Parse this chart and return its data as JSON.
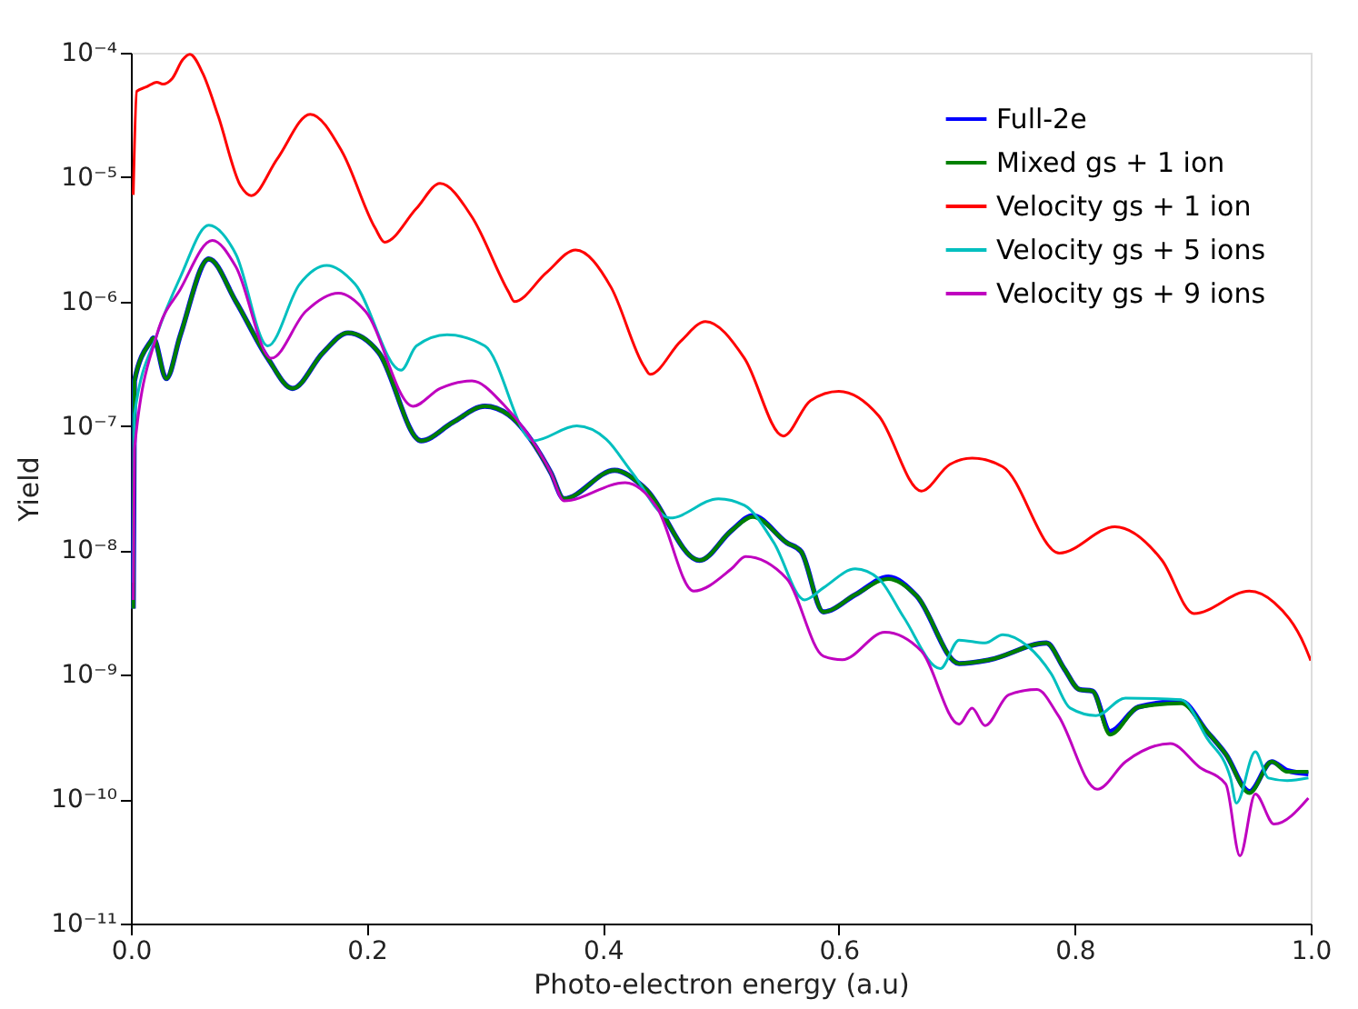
{
  "chart_data": {
    "type": "line",
    "xlabel": "Photo-electron energy (a.u)",
    "ylabel": "Yield",
    "log": "y",
    "legend": "top right",
    "grid": false,
    "line_style": "solid",
    "marker": "none",
    "xlim": [
      0,
      1
    ],
    "xticks": [
      {
        "value": 0,
        "label": "0.0"
      },
      0.2,
      0.4,
      0.6,
      0.8,
      {
        "value": 1,
        "label": "1.0"
      }
    ],
    "ylim": [
      1e-11,
      0.0001
    ],
    "yticks": [
      {
        "value": 1e-11,
        "label": "10⁻¹¹"
      },
      {
        "value": 1e-10,
        "label": "10⁻¹⁰"
      },
      {
        "value": 1e-09,
        "label": "10⁻⁹"
      },
      {
        "value": 1e-08,
        "label": "10⁻⁸"
      },
      {
        "value": 1e-07,
        "label": "10⁻⁷"
      },
      {
        "value": 1e-06,
        "label": "10⁻⁶"
      },
      {
        "value": 1e-05,
        "label": "10⁻⁵"
      },
      {
        "value": 0.0001,
        "label": "10⁻⁴"
      }
    ],
    "series": [
      {
        "name": "Full-2e",
        "color": "#0000ff",
        "x": [
          0.002,
          0.003,
          0.017,
          0.019,
          0.03,
          0.042,
          0.066,
          0.089,
          0.116,
          0.137,
          0.163,
          0.184,
          0.21,
          0.246,
          0.273,
          0.3,
          0.32,
          0.356,
          0.367,
          0.41,
          0.435,
          0.482,
          0.509,
          0.527,
          0.556,
          0.568,
          0.587,
          0.614,
          0.642,
          0.666,
          0.702,
          0.728,
          0.776,
          0.791,
          0.804,
          0.815,
          0.83,
          0.854,
          0.89,
          0.912,
          0.928,
          0.948,
          0.967,
          0.98,
          0.998
        ],
        "values": [
          3.4e-09,
          2.3e-07,
          4.8e-07,
          5.1e-07,
          2.4e-07,
          5.4e-07,
          2.2e-06,
          1e-06,
          3.5e-07,
          2e-07,
          3.9e-07,
          5.6e-07,
          3.9e-07,
          7.6e-08,
          1.07e-07,
          1.44e-07,
          1.23e-07,
          4.2e-08,
          2.6e-08,
          4.4e-08,
          3.2e-08,
          8.3e-09,
          1.44e-08,
          1.9e-08,
          1.15e-08,
          9.8e-09,
          3.2e-09,
          4.4e-09,
          6.1e-09,
          4.3e-09,
          1.23e-09,
          1.32e-09,
          1.8e-09,
          1.12e-09,
          7.6e-10,
          7.4e-10,
          3.5e-10,
          5.5e-10,
          6.1e-10,
          3.5e-10,
          2.3e-10,
          1.15e-10,
          2e-10,
          1.7e-10,
          1.6e-10
        ]
      },
      {
        "name": "Mixed gs + 1 ion",
        "color": "#008000",
        "x": [
          0.002,
          0.003,
          0.017,
          0.019,
          0.03,
          0.042,
          0.066,
          0.089,
          0.116,
          0.137,
          0.163,
          0.184,
          0.21,
          0.246,
          0.273,
          0.3,
          0.32,
          0.356,
          0.367,
          0.41,
          0.435,
          0.482,
          0.509,
          0.527,
          0.556,
          0.568,
          0.587,
          0.614,
          0.642,
          0.666,
          0.702,
          0.728,
          0.776,
          0.791,
          0.804,
          0.815,
          0.83,
          0.854,
          0.89,
          0.912,
          0.928,
          0.948,
          0.967,
          0.98,
          0.998
        ],
        "values": [
          3.4e-09,
          2.3e-07,
          4.8e-07,
          5.1e-07,
          2.4e-07,
          5.4e-07,
          2.2e-06,
          1e-06,
          3.5e-07,
          2e-07,
          3.9e-07,
          5.6e-07,
          3.9e-07,
          7.6e-08,
          1.07e-07,
          1.44e-07,
          1.23e-07,
          4.2e-08,
          2.6e-08,
          4.4e-08,
          3.2e-08,
          8.3e-09,
          1.44e-08,
          1.86e-08,
          1.15e-08,
          9.8e-09,
          3.2e-09,
          4.4e-09,
          5.9e-09,
          4.3e-09,
          1.23e-09,
          1.32e-09,
          1.8e-09,
          1.12e-09,
          7.6e-10,
          7.4e-10,
          3.3e-10,
          5.5e-10,
          5.9e-10,
          3.5e-10,
          2.3e-10,
          1.12e-10,
          2e-10,
          1.66e-10,
          1.66e-10
        ]
      },
      {
        "name": "Velocity gs + 1 ion",
        "color": "#ff0000",
        "x": [
          0.002,
          0.005,
          0.013,
          0.022,
          0.027,
          0.035,
          0.044,
          0.05,
          0.061,
          0.074,
          0.093,
          0.102,
          0.124,
          0.152,
          0.179,
          0.207,
          0.215,
          0.242,
          0.262,
          0.289,
          0.32,
          0.325,
          0.352,
          0.377,
          0.407,
          0.435,
          0.44,
          0.466,
          0.487,
          0.52,
          0.553,
          0.576,
          0.6,
          0.634,
          0.67,
          0.694,
          0.713,
          0.739,
          0.787,
          0.834,
          0.874,
          0.901,
          0.948,
          0.969,
          0.995,
          1.0
        ],
        "values": [
          7.2e-06,
          4.9e-05,
          5.3e-05,
          5.8e-05,
          5.6e-05,
          6.2e-05,
          8.8e-05,
          9.7e-05,
          6.8e-05,
          3.1e-05,
          8.5e-06,
          7.1e-06,
          1.4e-05,
          3.2e-05,
          1.6e-05,
          3.9e-06,
          3e-06,
          5.6e-06,
          8.9e-06,
          4.8e-06,
          1.2e-06,
          1e-06,
          1.7e-06,
          2.6e-06,
          1.3e-06,
          3e-07,
          2.6e-07,
          4.8e-07,
          6.9e-07,
          3.5e-07,
          8.3e-08,
          1.6e-07,
          1.9e-07,
          1.2e-07,
          3e-08,
          4.9e-08,
          5.5e-08,
          4.7e-08,
          9.5e-09,
          1.55e-08,
          8.3e-09,
          3.1e-09,
          4.7e-09,
          3.8e-09,
          1.7e-09,
          1.3e-09
        ]
      },
      {
        "name": "Velocity gs + 5 ions",
        "color": "#00bfbf",
        "x": [
          0.002,
          0.003,
          0.022,
          0.042,
          0.066,
          0.089,
          0.116,
          0.143,
          0.166,
          0.19,
          0.229,
          0.242,
          0.268,
          0.3,
          0.341,
          0.378,
          0.403,
          0.425,
          0.457,
          0.498,
          0.52,
          0.545,
          0.571,
          0.587,
          0.614,
          0.634,
          0.655,
          0.686,
          0.702,
          0.724,
          0.739,
          0.76,
          0.78,
          0.796,
          0.818,
          0.843,
          0.89,
          0.912,
          0.932,
          0.937,
          0.953,
          0.964,
          0.98,
          0.998
        ],
        "values": [
          5.5e-09,
          1.23e-07,
          5.4e-07,
          1.58e-06,
          4.1e-06,
          2.4e-06,
          4.4e-07,
          1.38e-06,
          1.95e-06,
          1.38e-06,
          2.8e-07,
          4.4e-07,
          5.4e-07,
          4.4e-07,
          7.6e-08,
          1e-07,
          7.8e-08,
          4.2e-08,
          1.82e-08,
          2.6e-08,
          2.3e-08,
          1.15e-08,
          4e-09,
          5e-09,
          7.1e-09,
          5.9e-09,
          2.9e-09,
          1.12e-09,
          1.9e-09,
          1.8e-09,
          2.1e-09,
          1.7e-09,
          1.02e-09,
          5.4e-10,
          4.7e-10,
          6.5e-10,
          6.3e-10,
          3.1e-10,
          1.48e-10,
          9.3e-11,
          2.4e-10,
          1.48e-10,
          1.41e-10,
          1.48e-10
        ]
      },
      {
        "name": "Velocity gs + 9 ions",
        "color": "#bf00bf",
        "x": [
          0.002,
          0.003,
          0.022,
          0.042,
          0.069,
          0.089,
          0.119,
          0.148,
          0.176,
          0.199,
          0.239,
          0.262,
          0.289,
          0.316,
          0.356,
          0.367,
          0.419,
          0.446,
          0.477,
          0.509,
          0.521,
          0.556,
          0.587,
          0.603,
          0.639,
          0.67,
          0.702,
          0.713,
          0.724,
          0.744,
          0.768,
          0.786,
          0.819,
          0.843,
          0.881,
          0.906,
          0.928,
          0.94,
          0.953,
          0.969,
          0.998
        ],
        "values": [
          4e-09,
          6.5e-08,
          5.4e-07,
          1.26e-06,
          3.1e-06,
          1.9e-06,
          3.5e-07,
          8.3e-07,
          1.17e-06,
          8.3e-07,
          1.44e-07,
          2e-07,
          2.3e-07,
          1.48e-07,
          4.2e-08,
          2.5e-08,
          3.5e-08,
          2.2e-08,
          4.7e-09,
          7.1e-09,
          8.9e-09,
          5.9e-09,
          1.41e-09,
          1.32e-09,
          2.2e-09,
          1.55e-09,
          4e-10,
          5.4e-10,
          3.9e-10,
          6.9e-10,
          7.6e-10,
          4.7e-10,
          1.2e-10,
          2e-10,
          2.8e-10,
          1.8e-10,
          1.32e-10,
          3.5e-11,
          1.1e-10,
          6.3e-11,
          1.02e-10
        ]
      }
    ]
  }
}
